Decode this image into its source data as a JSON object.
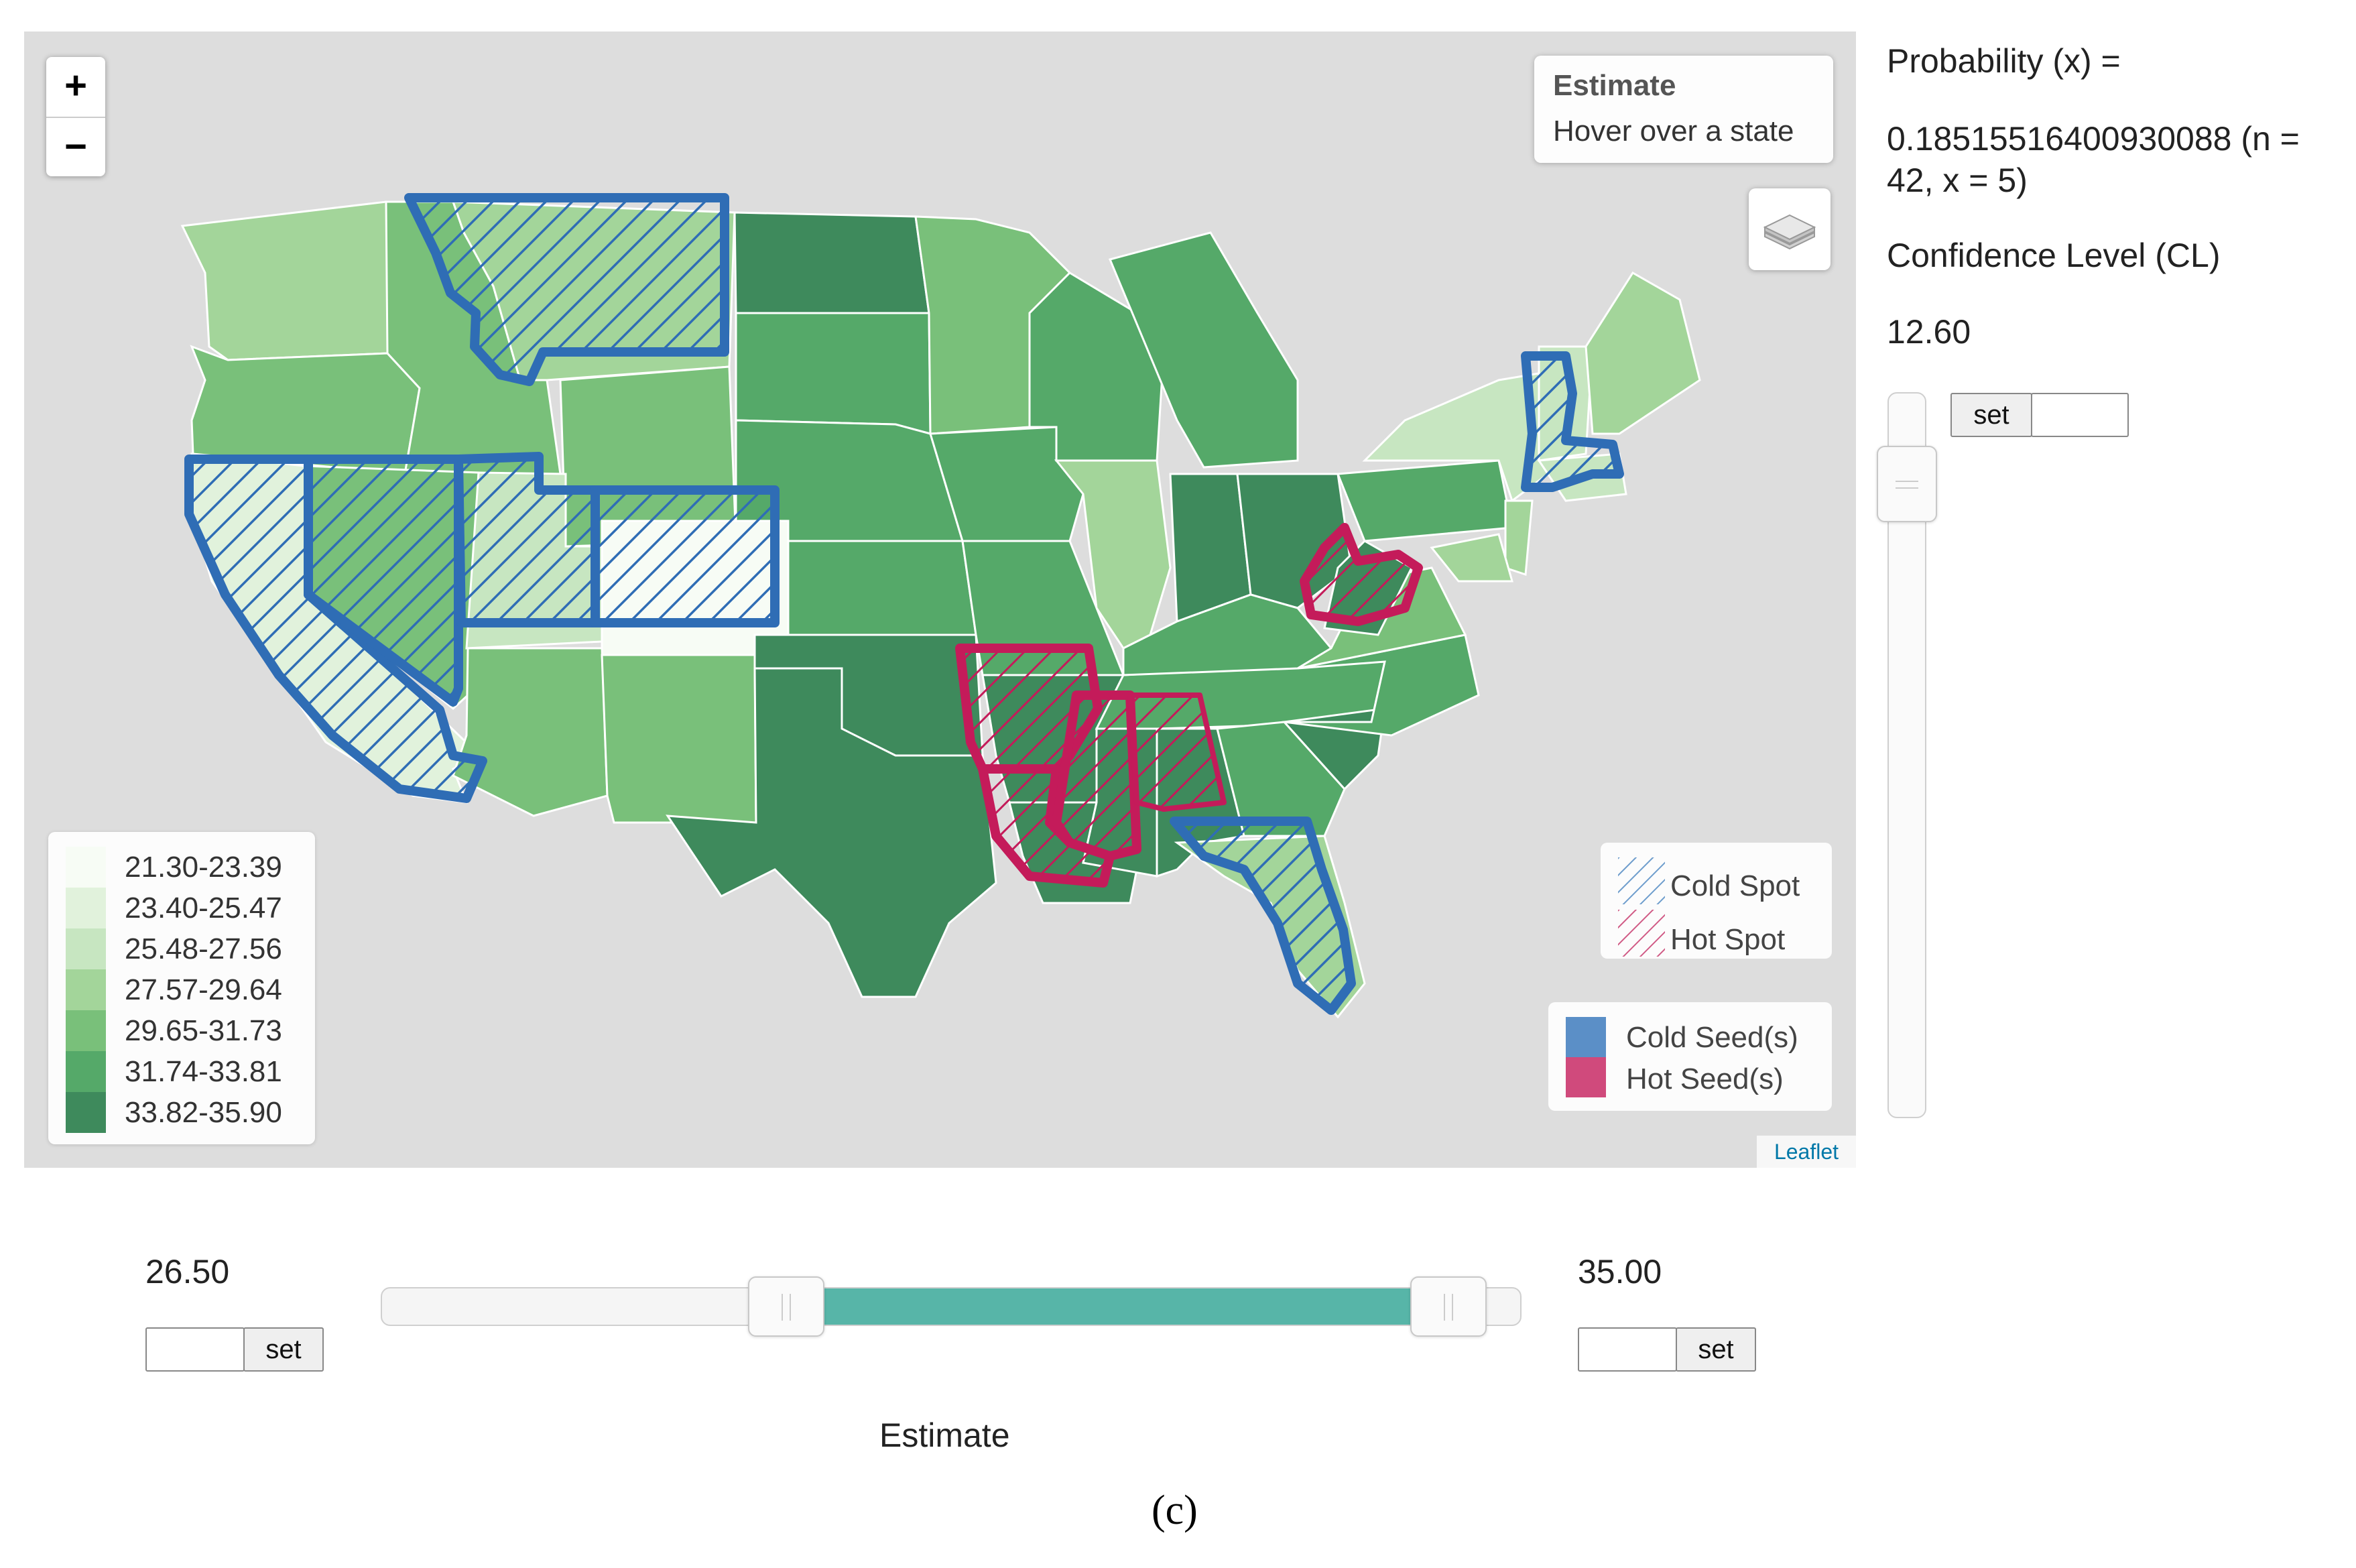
{
  "map": {
    "zoom_in": "+",
    "zoom_out": "−",
    "info_title": "Estimate",
    "info_hint": "Hover over a state",
    "layers_icon": "layers-icon",
    "attribution": "Leaflet",
    "choropleth_legend": [
      {
        "range": "21.30-23.39",
        "color": "#f7fcf5"
      },
      {
        "range": "23.40-25.47",
        "color": "#e1f2dc"
      },
      {
        "range": "25.48-27.56",
        "color": "#c7e6c1"
      },
      {
        "range": "27.57-29.64",
        "color": "#a3d59a"
      },
      {
        "range": "29.65-31.73",
        "color": "#79c07a"
      },
      {
        "range": "31.74-33.81",
        "color": "#55a969"
      },
      {
        "range": "33.82-35.90",
        "color": "#3e8a5c"
      }
    ],
    "spot_legend": {
      "cold": "Cold Spot",
      "hot": "Hot Spot"
    },
    "seed_legend": {
      "cold": "Cold Seed(s)",
      "hot": "Hot Seed(s)",
      "cold_color": "#5b8fc7",
      "hot_color": "#d04a7c"
    },
    "colors": {
      "cold_outline": "#2f6db5",
      "hot_outline": "#c41b5a",
      "background": "#dddddd"
    }
  },
  "panel": {
    "probability_label": "Probability (x) =",
    "probability_value_line1": "0.18515516400930088 (n =",
    "probability_value_line2": "42, x = 5)",
    "cl_label": "Confidence Level (CL)",
    "cl_value": "12.60",
    "set_label": "set"
  },
  "range": {
    "min_value": "26.50",
    "max_value": "35.00",
    "set_label": "set",
    "axis_label": "Estimate",
    "fill_color": "#57b5a8"
  },
  "caption": "(c)"
}
